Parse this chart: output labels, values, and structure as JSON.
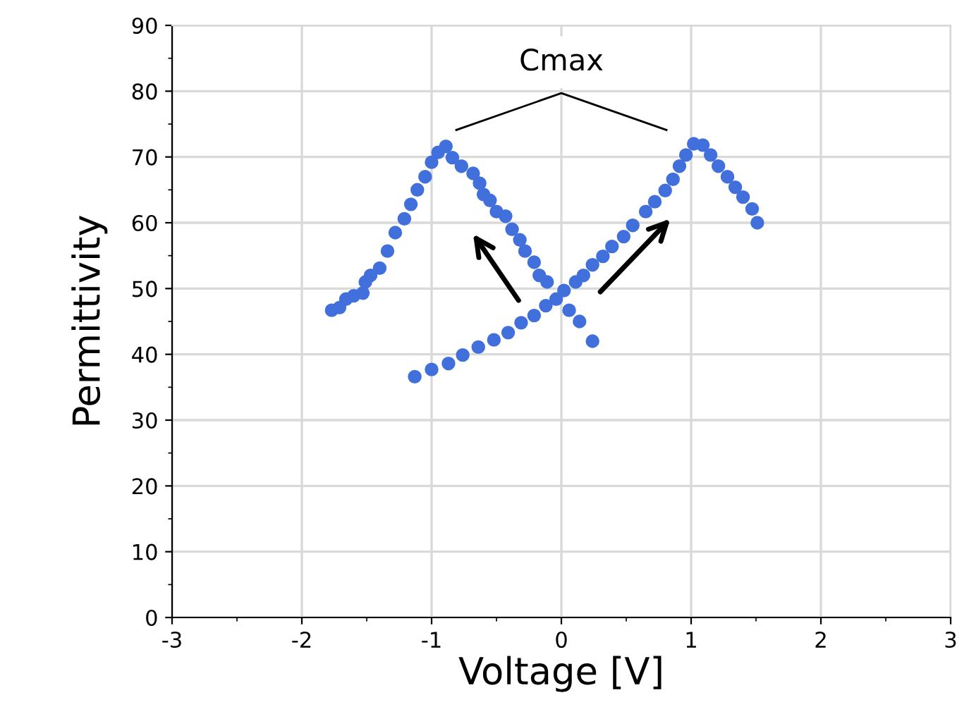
{
  "chart_data": {
    "type": "scatter",
    "xlabel": "Voltage [V]",
    "ylabel": "Permittivity",
    "annotations": [
      "Cmax"
    ],
    "xlim": [
      -3,
      3
    ],
    "xticks": [
      -3,
      -2,
      -1,
      0,
      1,
      2,
      3
    ],
    "ylim": [
      0,
      90
    ],
    "yticks": [
      0,
      10,
      20,
      30,
      40,
      50,
      60,
      70,
      80,
      90
    ],
    "grid": true,
    "marker": "circle",
    "series": [
      {
        "color": "#4170dc",
        "x": [
          0.24,
          0.14,
          0.06,
          -0.02,
          -0.11,
          -0.17,
          -0.21,
          -0.28,
          -0.32,
          -0.38,
          -0.43,
          -0.5,
          -0.55,
          -0.6,
          -0.63,
          -0.68,
          -0.77,
          -0.84,
          -0.89,
          -0.95,
          -1.0,
          -1.05,
          -1.11,
          -1.16,
          -1.21,
          -1.28,
          -1.34,
          -1.4,
          -1.47,
          -1.51,
          -1.53,
          -1.6,
          -1.66,
          -1.71,
          -1.77
        ],
        "values": [
          42.0,
          45.0,
          46.7,
          null,
          51.0,
          52.0,
          54.0,
          55.7,
          57.4,
          59.0,
          61.0,
          61.7,
          63.4,
          64.3,
          66.0,
          67.5,
          68.6,
          69.9,
          71.6,
          70.7,
          69.2,
          67.0,
          65.0,
          62.8,
          60.6,
          58.5,
          55.7,
          53.1,
          52.0,
          51.0,
          49.3,
          48.9,
          48.4,
          47.1,
          46.7
        ]
      },
      {
        "color": "#4170dc",
        "x": [
          -1.13,
          -1.0,
          -0.87,
          -0.76,
          -0.64,
          -0.52,
          -0.41,
          -0.31,
          -0.21,
          -0.12,
          -0.04,
          0.02,
          0.11,
          0.17,
          0.24,
          0.32,
          0.39,
          0.48,
          0.55,
          0.65,
          0.72,
          0.8,
          0.86,
          0.91,
          0.96,
          1.02,
          1.09,
          1.15,
          1.21,
          1.28,
          1.34,
          1.4,
          1.47,
          1.51
        ],
        "values": [
          36.6,
          37.7,
          38.6,
          39.9,
          41.1,
          42.2,
          43.3,
          44.8,
          45.9,
          47.4,
          48.4,
          49.7,
          51.0,
          52.0,
          53.6,
          54.9,
          56.4,
          57.9,
          59.6,
          61.7,
          63.2,
          64.9,
          66.6,
          68.6,
          70.3,
          72.0,
          71.8,
          70.3,
          68.6,
          67.0,
          65.4,
          63.9,
          62.1,
          60.0
        ]
      }
    ]
  }
}
